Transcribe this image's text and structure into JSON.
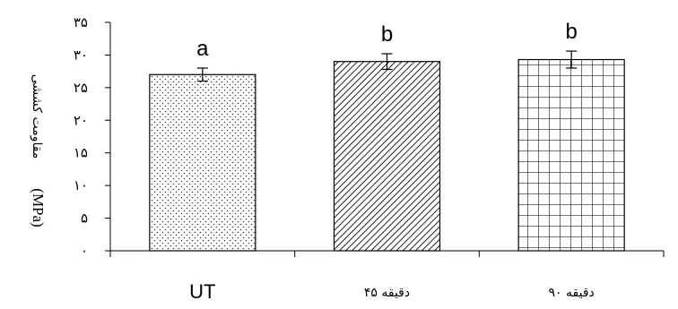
{
  "chart_data": {
    "type": "bar",
    "categories": [
      "UT",
      "دقیقه ۴۵",
      "دقیقه ۹۰"
    ],
    "values": [
      27.0,
      29.0,
      29.3
    ],
    "errors": [
      1.0,
      1.2,
      1.3
    ],
    "significance_letters": [
      "a",
      "b",
      "b"
    ],
    "ylabel": "مقاومت کششی",
    "ylabel_unit": "(MPa)",
    "ylim": [
      0,
      35
    ],
    "yticks": [
      0,
      5,
      10,
      15,
      20,
      25,
      30,
      35
    ],
    "ytick_labels": [
      "۰",
      "۵",
      "۱۰",
      "۱۵",
      "۲۰",
      "۲۵",
      "۳۰",
      "۳۵"
    ],
    "bar_patterns": [
      "dots",
      "diagonal-hatch",
      "grid"
    ],
    "grid": false,
    "legend": "none"
  }
}
